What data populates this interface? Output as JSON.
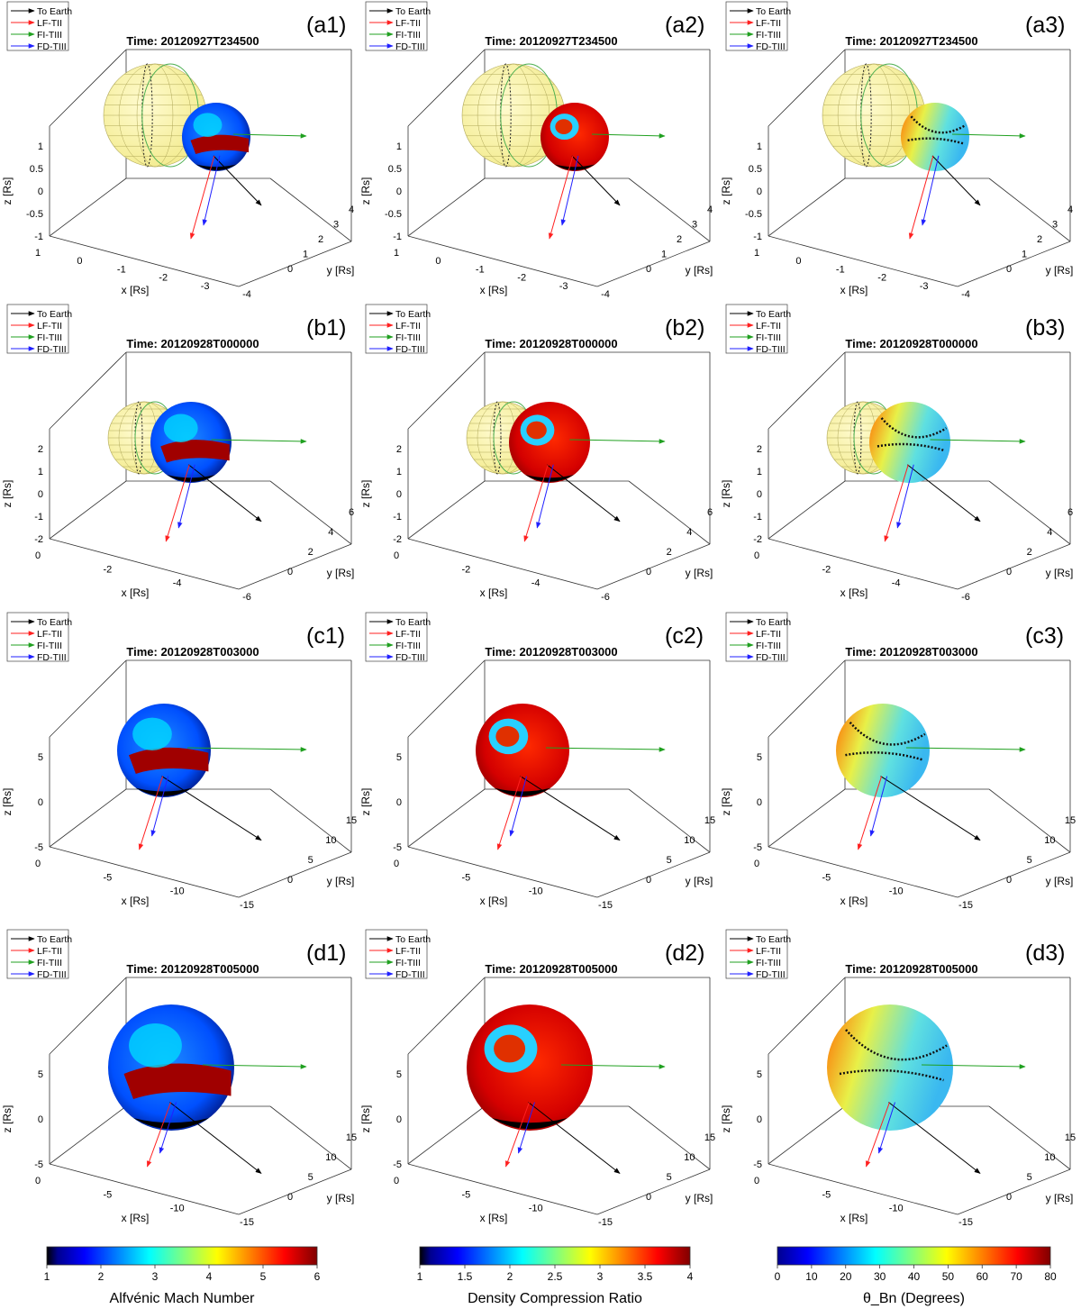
{
  "legend": [
    {
      "label": "To Earth",
      "color": "#000000"
    },
    {
      "label": "LF-TII",
      "color": "#ff2020"
    },
    {
      "label": "FI-TIII",
      "color": "#20a020"
    },
    {
      "label": "FD-TIII",
      "color": "#2020ff"
    }
  ],
  "rows": [
    {
      "time": "Time: 20120927T234500",
      "labels": [
        "(a1)",
        "(a2)",
        "(a3)"
      ],
      "axes": {
        "x_label": "x [Rs]",
        "y_label": "y [Rs]",
        "z_label": "z [Rs]",
        "x_ticks": [
          "1",
          "0",
          "-1",
          "-2",
          "-3",
          "-4"
        ],
        "y_ticks": [
          "0",
          "1",
          "2",
          "3",
          "4"
        ],
        "z_ticks": [
          "1",
          "0.5",
          "0",
          "-0.5",
          "-1"
        ]
      }
    },
    {
      "time": "Time: 20120928T000000",
      "labels": [
        "(b1)",
        "(b2)",
        "(b3)"
      ],
      "axes": {
        "x_label": "x [Rs]",
        "y_label": "y [Rs]",
        "z_label": "z [Rs]",
        "x_ticks": [
          "0",
          "-2",
          "-4",
          "-6"
        ],
        "y_ticks": [
          "0",
          "2",
          "4",
          "6"
        ],
        "z_ticks": [
          "2",
          "1",
          "0",
          "-1",
          "-2"
        ]
      }
    },
    {
      "time": "Time: 20120928T003000",
      "labels": [
        "(c1)",
        "(c2)",
        "(c3)"
      ],
      "axes": {
        "x_label": "x [Rs]",
        "y_label": "y [Rs]",
        "z_label": "z [Rs]",
        "x_ticks": [
          "0",
          "-5",
          "-10",
          "-15"
        ],
        "y_ticks": [
          "0",
          "5",
          "10",
          "15"
        ],
        "z_ticks": [
          "5",
          "0",
          "-5"
        ]
      }
    },
    {
      "time": "Time: 20120928T005000",
      "labels": [
        "(d1)",
        "(d2)",
        "(d3)"
      ],
      "axes": {
        "x_label": "x [Rs]",
        "y_label": "y [Rs]",
        "z_label": "z [Rs]",
        "x_ticks": [
          "0",
          "-5",
          "-10",
          "-15"
        ],
        "y_ticks": [
          "0",
          "5",
          "10",
          "15"
        ],
        "z_ticks": [
          "5",
          "0",
          "-5"
        ]
      }
    }
  ],
  "colorbars": [
    {
      "title": "Alfvénic Mach Number",
      "colormap": "jet",
      "ticks": [
        "1",
        "2",
        "3",
        "4",
        "5",
        "6"
      ]
    },
    {
      "title": "Density Compression Ratio",
      "colormap": "jet",
      "ticks": [
        "1",
        "1.5",
        "2",
        "2.5",
        "3",
        "3.5",
        "4"
      ]
    },
    {
      "title": "θ_Bn (Degrees)",
      "colormap": "jet",
      "ticks": [
        "0",
        "10",
        "20",
        "30",
        "40",
        "50",
        "60",
        "70",
        "80"
      ]
    }
  ],
  "colors": {
    "sun_fill": "#fbf5a0",
    "sun_grid": "#b0a858",
    "sun_meridian": "#4caf50"
  }
}
